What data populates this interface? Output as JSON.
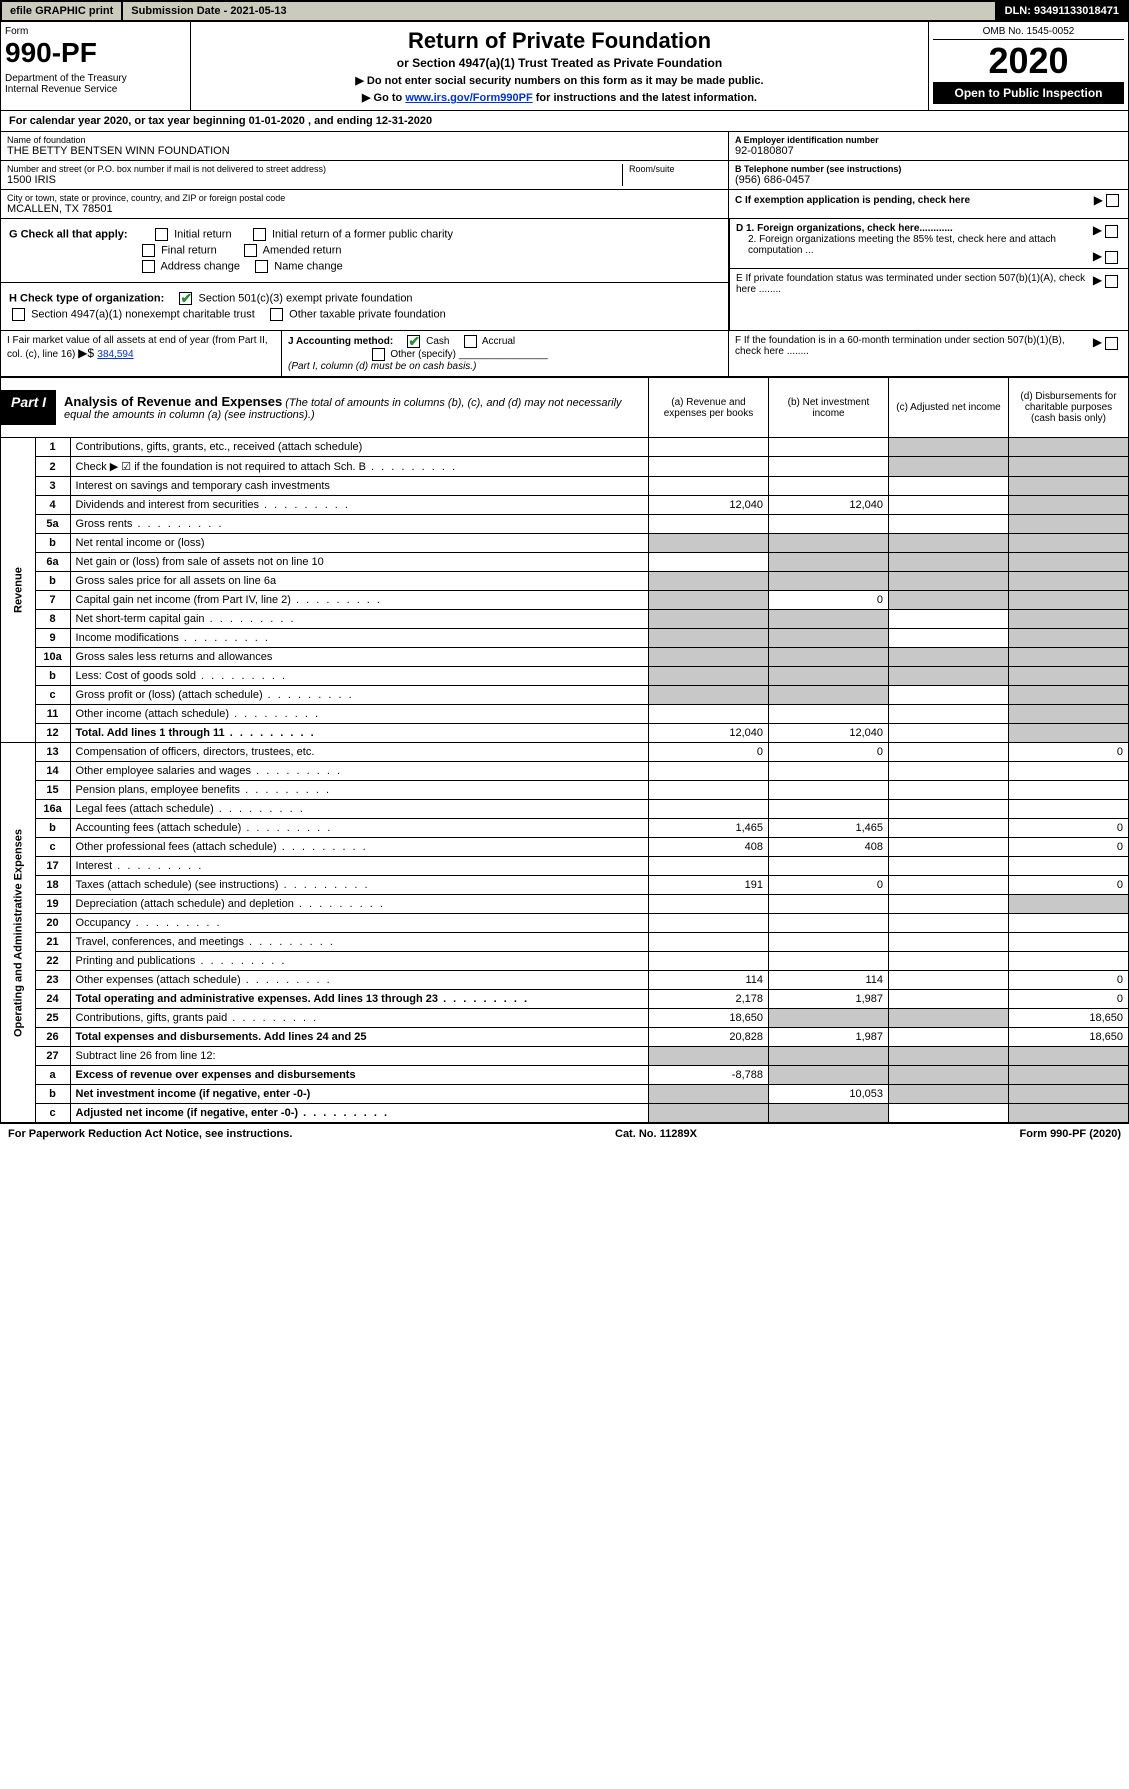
{
  "topbar": {
    "efile": "efile GRAPHIC print",
    "subdate": "Submission Date - 2021-05-13",
    "dln": "DLN: 93491133018471"
  },
  "header": {
    "form_label": "Form",
    "form_number": "990-PF",
    "dept": "Department of the Treasury\nInternal Revenue Service",
    "title": "Return of Private Foundation",
    "subtitle": "or Section 4947(a)(1) Trust Treated as Private Foundation",
    "note1": "▶ Do not enter social security numbers on this form as it may be made public.",
    "note2_prefix": "▶ Go to ",
    "note2_link": "www.irs.gov/Form990PF",
    "note2_suffix": " for instructions and the latest information.",
    "omb": "OMB No. 1545-0052",
    "year": "2020",
    "open": "Open to Public Inspection"
  },
  "calyear": "For calendar year 2020, or tax year beginning 01-01-2020                            , and ending 12-31-2020",
  "foundation": {
    "name_label": "Name of foundation",
    "name": "THE BETTY BENTSEN WINN FOUNDATION",
    "addr_label": "Number and street (or P.O. box number if mail is not delivered to street address)",
    "room_label": "Room/suite",
    "addr": "1500 IRIS",
    "city_label": "City or town, state or province, country, and ZIP or foreign postal code",
    "city": "MCALLEN, TX  78501",
    "ein_label": "A Employer identification number",
    "ein": "92-0180807",
    "phone_label": "B Telephone number (see instructions)",
    "phone": "(956) 686-0457",
    "c_label": "C If exemption application is pending, check here"
  },
  "checks": {
    "g_label": "G Check all that apply:",
    "g1": "Initial return",
    "g2": "Initial return of a former public charity",
    "g3": "Final return",
    "g4": "Amended return",
    "g5": "Address change",
    "g6": "Name change",
    "h_label": "H Check type of organization:",
    "h1": "Section 501(c)(3) exempt private foundation",
    "h2": "Section 4947(a)(1) nonexempt charitable trust",
    "h3": "Other taxable private foundation",
    "d1": "D 1. Foreign organizations, check here............",
    "d2": "2. Foreign organizations meeting the 85% test, check here and attach computation ...",
    "e": "E  If private foundation status was terminated under section 507(b)(1)(A), check here ........",
    "f": "F  If the foundation is in a 60-month termination under section 507(b)(1)(B), check here ........"
  },
  "i_block": {
    "label": "I Fair market value of all assets at end of year (from Part II, col. (c), line 16)",
    "arrow": "▶$",
    "amount": "384,594"
  },
  "j_block": {
    "label": "J Accounting method:",
    "cash": "Cash",
    "accrual": "Accrual",
    "other": "Other (specify)",
    "note": "(Part I, column (d) must be on cash basis.)"
  },
  "part1": {
    "tag": "Part I",
    "title": "Analysis of Revenue and Expenses",
    "title_note": "(The total of amounts in columns (b), (c), and (d) may not necessarily equal the amounts in column (a) (see instructions).)",
    "cols": {
      "a": "(a)   Revenue and expenses per books",
      "b": "(b)  Net investment income",
      "c": "(c)  Adjusted net income",
      "d": "(d)  Disbursements for charitable purposes (cash basis only)"
    }
  },
  "side_rev": "Revenue",
  "side_exp": "Operating and Administrative Expenses",
  "rows": [
    {
      "n": "1",
      "d": "Contributions, gifts, grants, etc., received (attach schedule)",
      "a": "",
      "b": "",
      "c": "s",
      "ds": "s"
    },
    {
      "n": "2",
      "d": "Check ▶ ☑ if the foundation is not required to attach Sch. B",
      "a": "",
      "b": "",
      "c": "s",
      "ds": "s",
      "dots": true
    },
    {
      "n": "3",
      "d": "Interest on savings and temporary cash investments",
      "a": "",
      "b": "",
      "c": "",
      "ds": "s"
    },
    {
      "n": "4",
      "d": "Dividends and interest from securities",
      "a": "12,040",
      "b": "12,040",
      "c": "",
      "ds": "s",
      "dots": true
    },
    {
      "n": "5a",
      "d": "Gross rents",
      "a": "",
      "b": "",
      "c": "",
      "ds": "s",
      "dots": true
    },
    {
      "n": "b",
      "d": "Net rental income or (loss)",
      "a": "s",
      "b": "s",
      "c": "s",
      "ds": "s"
    },
    {
      "n": "6a",
      "d": "Net gain or (loss) from sale of assets not on line 10",
      "a": "",
      "b": "s",
      "c": "s",
      "ds": "s"
    },
    {
      "n": "b",
      "d": "Gross sales price for all assets on line 6a",
      "a": "s",
      "b": "s",
      "c": "s",
      "ds": "s"
    },
    {
      "n": "7",
      "d": "Capital gain net income (from Part IV, line 2)",
      "a": "s",
      "b": "0",
      "c": "s",
      "ds": "s",
      "dots": true
    },
    {
      "n": "8",
      "d": "Net short-term capital gain",
      "a": "s",
      "b": "s",
      "c": "",
      "ds": "s",
      "dots": true
    },
    {
      "n": "9",
      "d": "Income modifications",
      "a": "s",
      "b": "s",
      "c": "",
      "ds": "s",
      "dots": true
    },
    {
      "n": "10a",
      "d": "Gross sales less returns and allowances",
      "a": "s",
      "b": "s",
      "c": "s",
      "ds": "s"
    },
    {
      "n": "b",
      "d": "Less: Cost of goods sold",
      "a": "s",
      "b": "s",
      "c": "s",
      "ds": "s",
      "dots": true
    },
    {
      "n": "c",
      "d": "Gross profit or (loss) (attach schedule)",
      "a": "s",
      "b": "s",
      "c": "",
      "ds": "s",
      "dots": true
    },
    {
      "n": "11",
      "d": "Other income (attach schedule)",
      "a": "",
      "b": "",
      "c": "",
      "ds": "s",
      "dots": true
    },
    {
      "n": "12",
      "d": "Total. Add lines 1 through 11",
      "a": "12,040",
      "b": "12,040",
      "c": "",
      "ds": "s",
      "bold": true,
      "dots": true
    },
    {
      "n": "13",
      "d": "Compensation of officers, directors, trustees, etc.",
      "a": "0",
      "b": "0",
      "c": "",
      "ds": "0"
    },
    {
      "n": "14",
      "d": "Other employee salaries and wages",
      "a": "",
      "b": "",
      "c": "",
      "ds": "",
      "dots": true
    },
    {
      "n": "15",
      "d": "Pension plans, employee benefits",
      "a": "",
      "b": "",
      "c": "",
      "ds": "",
      "dots": true
    },
    {
      "n": "16a",
      "d": "Legal fees (attach schedule)",
      "a": "",
      "b": "",
      "c": "",
      "ds": "",
      "dots": true
    },
    {
      "n": "b",
      "d": "Accounting fees (attach schedule)",
      "a": "1,465",
      "b": "1,465",
      "c": "",
      "ds": "0",
      "dots": true
    },
    {
      "n": "c",
      "d": "Other professional fees (attach schedule)",
      "a": "408",
      "b": "408",
      "c": "",
      "ds": "0",
      "dots": true
    },
    {
      "n": "17",
      "d": "Interest",
      "a": "",
      "b": "",
      "c": "",
      "ds": "",
      "dots": true
    },
    {
      "n": "18",
      "d": "Taxes (attach schedule) (see instructions)",
      "a": "191",
      "b": "0",
      "c": "",
      "ds": "0",
      "dots": true
    },
    {
      "n": "19",
      "d": "Depreciation (attach schedule) and depletion",
      "a": "",
      "b": "",
      "c": "",
      "ds": "s",
      "dots": true
    },
    {
      "n": "20",
      "d": "Occupancy",
      "a": "",
      "b": "",
      "c": "",
      "ds": "",
      "dots": true
    },
    {
      "n": "21",
      "d": "Travel, conferences, and meetings",
      "a": "",
      "b": "",
      "c": "",
      "ds": "",
      "dots": true
    },
    {
      "n": "22",
      "d": "Printing and publications",
      "a": "",
      "b": "",
      "c": "",
      "ds": "",
      "dots": true
    },
    {
      "n": "23",
      "d": "Other expenses (attach schedule)",
      "a": "114",
      "b": "114",
      "c": "",
      "ds": "0",
      "dots": true
    },
    {
      "n": "24",
      "d": "Total operating and administrative expenses. Add lines 13 through 23",
      "a": "2,178",
      "b": "1,987",
      "c": "",
      "ds": "0",
      "bold": true,
      "dots": true
    },
    {
      "n": "25",
      "d": "Contributions, gifts, grants paid",
      "a": "18,650",
      "b": "s",
      "c": "s",
      "ds": "18,650",
      "dots": true
    },
    {
      "n": "26",
      "d": "Total expenses and disbursements. Add lines 24 and 25",
      "a": "20,828",
      "b": "1,987",
      "c": "",
      "ds": "18,650",
      "bold": true
    },
    {
      "n": "27",
      "d": "Subtract line 26 from line 12:",
      "a": "s",
      "b": "s",
      "c": "s",
      "ds": "s"
    },
    {
      "n": "a",
      "d": "Excess of revenue over expenses and disbursements",
      "a": "-8,788",
      "b": "s",
      "c": "s",
      "ds": "s",
      "bold": true
    },
    {
      "n": "b",
      "d": "Net investment income (if negative, enter -0-)",
      "a": "s",
      "b": "10,053",
      "c": "s",
      "ds": "s",
      "bold": true
    },
    {
      "n": "c",
      "d": "Adjusted net income (if negative, enter -0-)",
      "a": "s",
      "b": "s",
      "c": "",
      "ds": "s",
      "bold": true,
      "dots": true
    }
  ],
  "footer": {
    "left": "For Paperwork Reduction Act Notice, see instructions.",
    "mid": "Cat. No. 11289X",
    "right": "Form 990-PF (2020)"
  }
}
